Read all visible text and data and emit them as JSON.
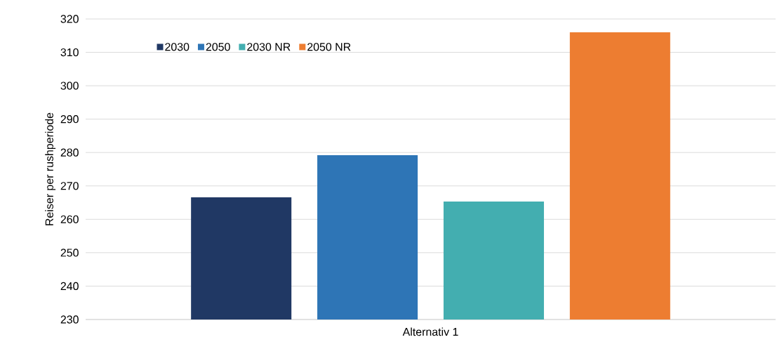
{
  "chart_data": {
    "type": "bar",
    "ylabel": "Reiser per rushperiode",
    "categories": [
      "Alternativ 1"
    ],
    "series": [
      {
        "name": "2030",
        "color": "#203864",
        "values": [
          266.6
        ]
      },
      {
        "name": "2050",
        "color": "#2e75b6",
        "values": [
          279.2
        ]
      },
      {
        "name": "2030 NR",
        "color": "#43aeb0",
        "values": [
          265.3
        ]
      },
      {
        "name": "2050 NR",
        "color": "#ed7d31",
        "values": [
          316.0
        ]
      }
    ],
    "ylim": [
      230,
      320
    ],
    "yticks": [
      230,
      240,
      250,
      260,
      270,
      280,
      290,
      300,
      310,
      320
    ],
    "grid": "y",
    "legend": "top left"
  }
}
